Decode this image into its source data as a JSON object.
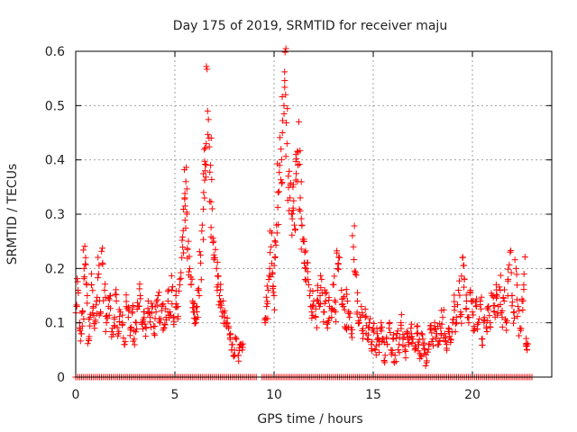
{
  "chart_data": {
    "type": "scatter",
    "title": "Day 175 of 2019, SRMTID for receiver maju",
    "xlabel": "GPS time / hours",
    "ylabel": "SRMTID / TECUs",
    "xlim": [
      0,
      24
    ],
    "ylim": [
      0,
      0.6
    ],
    "xticks": [
      0,
      5,
      10,
      15,
      20
    ],
    "xtick_labels": [
      "0",
      "5",
      "10",
      "15",
      "20"
    ],
    "yticks": [
      0,
      0.1,
      0.2,
      0.3,
      0.4,
      0.5,
      0.6
    ],
    "ytick_labels": [
      "0",
      "0.1",
      "0.2",
      "0.3",
      "0.4",
      "0.5",
      "0.6"
    ],
    "grid": true,
    "marker": "plus",
    "color": "#ff0000",
    "series": [
      {
        "name": "SRMTID",
        "points": [
          [
            0.05,
            0.13
          ],
          [
            0.12,
            0.16
          ],
          [
            0.2,
            0.1
          ],
          [
            0.28,
            0.08
          ],
          [
            0.35,
            0.12
          ],
          [
            0.42,
            0.2
          ],
          [
            0.5,
            0.22
          ],
          [
            0.58,
            0.15
          ],
          [
            0.65,
            0.07
          ],
          [
            0.72,
            0.11
          ],
          [
            0.8,
            0.17
          ],
          [
            0.88,
            0.13
          ],
          [
            0.95,
            0.09
          ],
          [
            1.05,
            0.14
          ],
          [
            1.15,
            0.19
          ],
          [
            1.25,
            0.12
          ],
          [
            1.35,
            0.21
          ],
          [
            1.45,
            0.16
          ],
          [
            1.55,
            0.1
          ],
          [
            1.65,
            0.13
          ],
          [
            1.75,
            0.15
          ],
          [
            1.85,
            0.09
          ],
          [
            1.95,
            0.11
          ],
          [
            2.05,
            0.14
          ],
          [
            2.15,
            0.08
          ],
          [
            2.25,
            0.12
          ],
          [
            2.35,
            0.1
          ],
          [
            2.45,
            0.06
          ],
          [
            2.55,
            0.13
          ],
          [
            2.65,
            0.11
          ],
          [
            2.75,
            0.09
          ],
          [
            2.85,
            0.12
          ],
          [
            2.95,
            0.07
          ],
          [
            3.05,
            0.1
          ],
          [
            3.15,
            0.13
          ],
          [
            3.25,
            0.15
          ],
          [
            3.35,
            0.1
          ],
          [
            3.45,
            0.12
          ],
          [
            3.55,
            0.09
          ],
          [
            3.65,
            0.14
          ],
          [
            3.75,
            0.11
          ],
          [
            3.85,
            0.13
          ],
          [
            3.95,
            0.08
          ],
          [
            4.05,
            0.12
          ],
          [
            4.15,
            0.15
          ],
          [
            4.25,
            0.1
          ],
          [
            4.35,
            0.13
          ],
          [
            4.45,
            0.09
          ],
          [
            4.55,
            0.11
          ],
          [
            4.65,
            0.14
          ],
          [
            4.75,
            0.12
          ],
          [
            4.85,
            0.16
          ],
          [
            4.95,
            0.11
          ],
          [
            5.05,
            0.15
          ],
          [
            5.15,
            0.13
          ],
          [
            5.25,
            0.17
          ],
          [
            5.35,
            0.22
          ],
          [
            5.42,
            0.27
          ],
          [
            5.5,
            0.33
          ],
          [
            5.55,
            0.36
          ],
          [
            5.6,
            0.3
          ],
          [
            5.68,
            0.25
          ],
          [
            5.75,
            0.2
          ],
          [
            5.82,
            0.17
          ],
          [
            5.9,
            0.14
          ],
          [
            5.98,
            0.12
          ],
          [
            6.05,
            0.1
          ],
          [
            6.12,
            0.13
          ],
          [
            6.2,
            0.16
          ],
          [
            6.3,
            0.21
          ],
          [
            6.38,
            0.28
          ],
          [
            6.45,
            0.34
          ],
          [
            6.52,
            0.38
          ],
          [
            6.58,
            0.43
          ],
          [
            6.65,
            0.49
          ],
          [
            6.72,
            0.44
          ],
          [
            6.8,
            0.39
          ],
          [
            6.88,
            0.31
          ],
          [
            6.95,
            0.25
          ],
          [
            7.02,
            0.22
          ],
          [
            7.1,
            0.2
          ],
          [
            7.18,
            0.17
          ],
          [
            7.25,
            0.15
          ],
          [
            7.32,
            0.14
          ],
          [
            7.4,
            0.12
          ],
          [
            7.5,
            0.11
          ],
          [
            7.6,
            0.1
          ],
          [
            7.7,
            0.09
          ],
          [
            7.8,
            0.08
          ],
          [
            7.9,
            0.06
          ],
          [
            8.0,
            0.05
          ],
          [
            8.1,
            0.07
          ],
          [
            8.2,
            0.04
          ],
          [
            8.3,
            0.06
          ],
          [
            8.4,
            0.05
          ],
          [
            9.55,
            0.1
          ],
          [
            9.62,
            0.13
          ],
          [
            9.7,
            0.16
          ],
          [
            9.78,
            0.2
          ],
          [
            9.85,
            0.24
          ],
          [
            9.92,
            0.19
          ],
          [
            10.0,
            0.15
          ],
          [
            10.05,
            0.22
          ],
          [
            10.12,
            0.28
          ],
          [
            10.2,
            0.34
          ],
          [
            10.28,
            0.39
          ],
          [
            10.35,
            0.42
          ],
          [
            10.42,
            0.45
          ],
          [
            10.5,
            0.5
          ],
          [
            10.58,
            0.52
          ],
          [
            10.65,
            0.43
          ],
          [
            10.72,
            0.37
          ],
          [
            10.8,
            0.33
          ],
          [
            10.88,
            0.3
          ],
          [
            10.95,
            0.35
          ],
          [
            11.02,
            0.28
          ],
          [
            11.1,
            0.41
          ],
          [
            11.18,
            0.36
          ],
          [
            11.25,
            0.47
          ],
          [
            11.32,
            0.33
          ],
          [
            11.4,
            0.28
          ],
          [
            11.48,
            0.25
          ],
          [
            11.55,
            0.23
          ],
          [
            11.62,
            0.2
          ],
          [
            11.7,
            0.18
          ],
          [
            11.8,
            0.15
          ],
          [
            11.9,
            0.12
          ],
          [
            12.0,
            0.14
          ],
          [
            12.1,
            0.11
          ],
          [
            12.2,
            0.16
          ],
          [
            12.3,
            0.13
          ],
          [
            12.4,
            0.18
          ],
          [
            12.5,
            0.12
          ],
          [
            12.6,
            0.14
          ],
          [
            12.7,
            0.1
          ],
          [
            12.8,
            0.13
          ],
          [
            12.9,
            0.11
          ],
          [
            13.0,
            0.17
          ],
          [
            13.1,
            0.12
          ],
          [
            13.2,
            0.2
          ],
          [
            13.3,
            0.22
          ],
          [
            13.4,
            0.16
          ],
          [
            13.5,
            0.13
          ],
          [
            13.6,
            0.09
          ],
          [
            13.7,
            0.14
          ],
          [
            13.8,
            0.11
          ],
          [
            13.9,
            0.08
          ],
          [
            14.0,
            0.24
          ],
          [
            14.1,
            0.19
          ],
          [
            14.2,
            0.14
          ],
          [
            14.3,
            0.1
          ],
          [
            14.4,
            0.13
          ],
          [
            14.5,
            0.08
          ],
          [
            14.6,
            0.11
          ],
          [
            14.7,
            0.07
          ],
          [
            14.8,
            0.1
          ],
          [
            14.9,
            0.06
          ],
          [
            15.0,
            0.09
          ],
          [
            15.1,
            0.05
          ],
          [
            15.2,
            0.08
          ],
          [
            15.3,
            0.06
          ],
          [
            15.4,
            0.1
          ],
          [
            15.5,
            0.07
          ],
          [
            15.6,
            0.04
          ],
          [
            15.7,
            0.06
          ],
          [
            15.8,
            0.09
          ],
          [
            15.9,
            0.05
          ],
          [
            16.0,
            0.07
          ],
          [
            16.1,
            0.04
          ],
          [
            16.2,
            0.08
          ],
          [
            16.3,
            0.06
          ],
          [
            16.4,
            0.1
          ],
          [
            16.5,
            0.07
          ],
          [
            16.6,
            0.05
          ],
          [
            16.7,
            0.08
          ],
          [
            16.8,
            0.06
          ],
          [
            16.9,
            0.09
          ],
          [
            17.0,
            0.07
          ],
          [
            17.1,
            0.05
          ],
          [
            17.2,
            0.08
          ],
          [
            17.3,
            0.06
          ],
          [
            17.4,
            0.04
          ],
          [
            17.5,
            0.07
          ],
          [
            17.6,
            0.05
          ],
          [
            17.7,
            0.03
          ],
          [
            17.8,
            0.06
          ],
          [
            17.9,
            0.09
          ],
          [
            18.0,
            0.07
          ],
          [
            18.1,
            0.1
          ],
          [
            18.2,
            0.08
          ],
          [
            18.3,
            0.06
          ],
          [
            18.4,
            0.09
          ],
          [
            18.5,
            0.11
          ],
          [
            18.6,
            0.08
          ],
          [
            18.7,
            0.06
          ],
          [
            18.8,
            0.09
          ],
          [
            18.9,
            0.07
          ],
          [
            19.0,
            0.1
          ],
          [
            19.1,
            0.13
          ],
          [
            19.2,
            0.1
          ],
          [
            19.3,
            0.16
          ],
          [
            19.4,
            0.12
          ],
          [
            19.5,
            0.22
          ],
          [
            19.6,
            0.18
          ],
          [
            19.7,
            0.14
          ],
          [
            19.8,
            0.11
          ],
          [
            19.9,
            0.16
          ],
          [
            20.0,
            0.12
          ],
          [
            20.1,
            0.09
          ],
          [
            20.2,
            0.13
          ],
          [
            20.3,
            0.1
          ],
          [
            20.4,
            0.14
          ],
          [
            20.5,
            0.07
          ],
          [
            20.6,
            0.11
          ],
          [
            20.7,
            0.09
          ],
          [
            20.8,
            0.13
          ],
          [
            20.9,
            0.1
          ],
          [
            21.0,
            0.15
          ],
          [
            21.1,
            0.12
          ],
          [
            21.2,
            0.17
          ],
          [
            21.3,
            0.13
          ],
          [
            21.4,
            0.16
          ],
          [
            21.5,
            0.11
          ],
          [
            21.6,
            0.14
          ],
          [
            21.7,
            0.1
          ],
          [
            21.8,
            0.18
          ],
          [
            21.9,
            0.23
          ],
          [
            22.0,
            0.15
          ],
          [
            22.1,
            0.12
          ],
          [
            22.2,
            0.2
          ],
          [
            22.3,
            0.13
          ],
          [
            22.4,
            0.09
          ],
          [
            22.5,
            0.14
          ],
          [
            22.6,
            0.19
          ],
          [
            22.7,
            0.06
          ],
          [
            22.75,
            0.05
          ]
        ],
        "zero_ranges": [
          [
            0,
            9.1
          ],
          [
            9.4,
            23
          ]
        ]
      }
    ]
  }
}
